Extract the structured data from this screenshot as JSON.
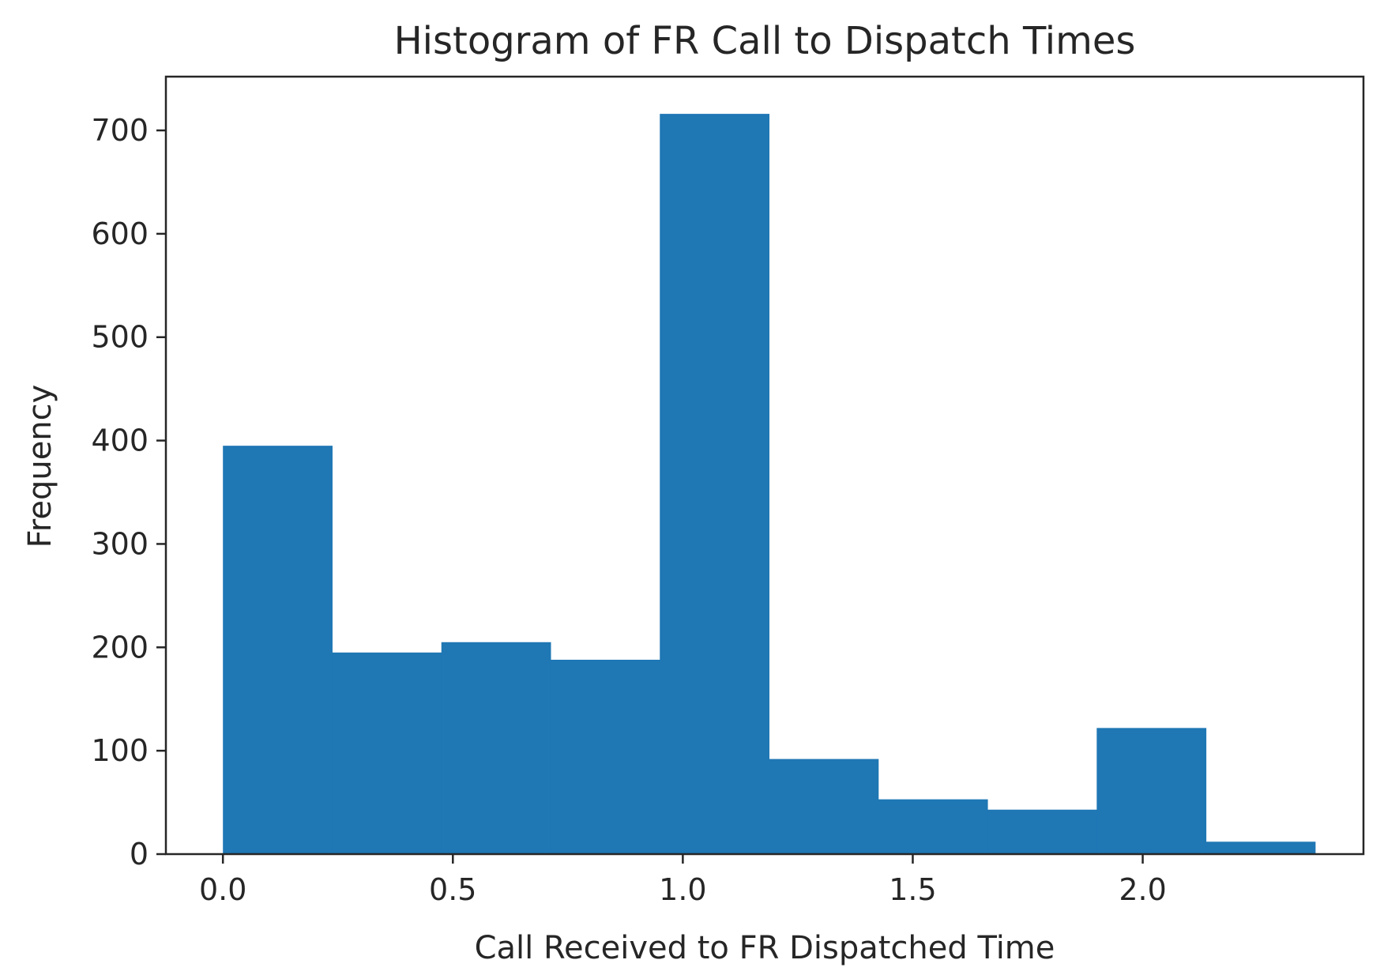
{
  "chart_data": {
    "type": "bar",
    "subtype": "histogram",
    "title": "Histogram of FR Call to Dispatch Times",
    "xlabel": "Call Received to FR Dispatched Time",
    "ylabel": "Frequency",
    "bin_edges": [
      0.0,
      0.2375,
      0.475,
      0.7125,
      0.95,
      1.1875,
      1.425,
      1.6625,
      1.9,
      2.1375,
      2.375
    ],
    "values": [
      395,
      195,
      205,
      188,
      716,
      92,
      53,
      43,
      122,
      12
    ],
    "xlim": [
      -0.124,
      2.48
    ],
    "ylim": [
      0,
      752
    ],
    "xticks": [
      0.0,
      0.5,
      1.0,
      1.5,
      2.0
    ],
    "xtick_labels": [
      "0.0",
      "0.5",
      "1.0",
      "1.5",
      "2.0"
    ],
    "yticks": [
      0,
      100,
      200,
      300,
      400,
      500,
      600,
      700
    ],
    "ytick_labels": [
      "0",
      "100",
      "200",
      "300",
      "400",
      "500",
      "600",
      "700"
    ],
    "bar_color": "#1f77b4",
    "grid": false,
    "legend": "none"
  }
}
